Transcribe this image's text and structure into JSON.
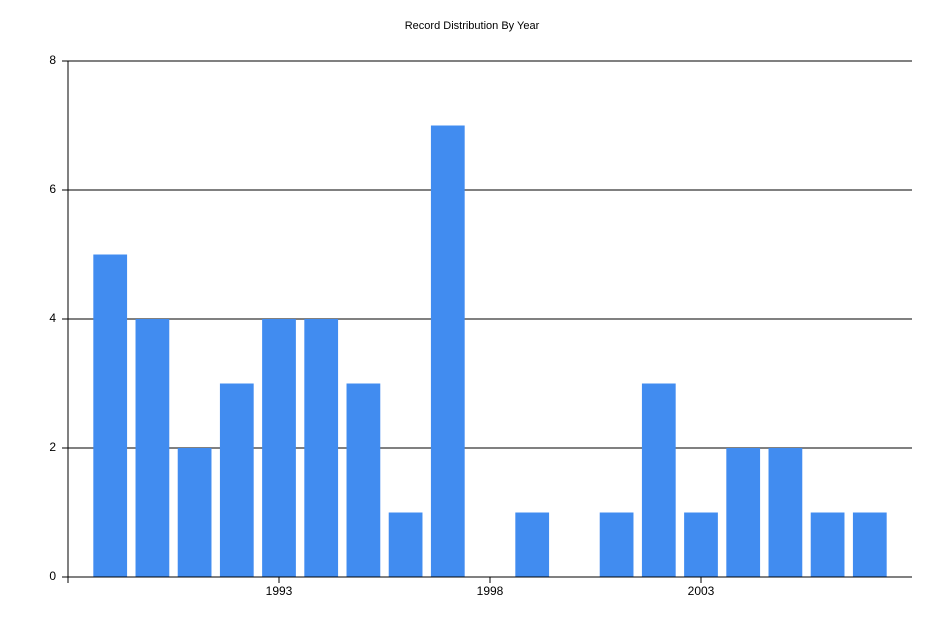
{
  "chart_data": {
    "type": "bar",
    "title": "Record Distribution By Year",
    "x": [
      1989,
      1990,
      1991,
      1992,
      1993,
      1994,
      1995,
      1996,
      1997,
      1999,
      2001,
      2002,
      2003,
      2004,
      2005,
      2006,
      2007
    ],
    "values": [
      5,
      4,
      2,
      3,
      4,
      4,
      3,
      1,
      7,
      1,
      1,
      3,
      1,
      2,
      2,
      1,
      1
    ],
    "color": "#418cf0",
    "xlim": [
      1988,
      2008
    ],
    "xticks": [
      1993,
      1998,
      2003
    ],
    "ylim": [
      0,
      8
    ],
    "yticks": [
      0,
      2,
      4,
      6,
      8
    ],
    "grid": true
  }
}
